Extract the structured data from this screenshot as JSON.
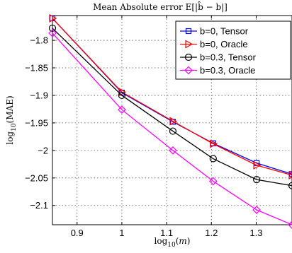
{
  "chart_data": {
    "type": "line",
    "title": "Mean Absolute error E[|b̂ − b|]",
    "xlabel": "log10(m)",
    "ylabel": "log10(MAE)",
    "x": [
      0.845,
      1.0,
      1.114,
      1.204,
      1.301,
      1.38
    ],
    "xlim": [
      0.845,
      1.38
    ],
    "ylim": [
      -2.135,
      -1.755
    ],
    "xticks": [
      0.9,
      1.0,
      1.1,
      1.2,
      1.3
    ],
    "xtick_labels": [
      "0.9",
      "1",
      "1.1",
      "1.2",
      "1.3"
    ],
    "yticks": [
      -1.8,
      -1.85,
      -1.9,
      -1.95,
      -2.0,
      -2.05,
      -2.1
    ],
    "ytick_labels": [
      "−1.8",
      "−1.85",
      "−1.9",
      "−1.95",
      "−2",
      "−2.05",
      "−2.1"
    ],
    "grid": true,
    "legend_position": "top-right",
    "series": [
      {
        "name": "b=0, Tensor",
        "color": "#0000ff",
        "marker": "square",
        "values": [
          -1.76,
          -1.895,
          -1.948,
          -1.987,
          -2.023,
          -2.043
        ]
      },
      {
        "name": "b=0, Oracle",
        "color": "#ff0000",
        "marker": "triangle-right",
        "values": [
          -1.76,
          -1.894,
          -1.947,
          -1.988,
          -2.027,
          -2.045
        ]
      },
      {
        "name": "b=0.3, Tensor",
        "color": "#000000",
        "marker": "circle",
        "values": [
          -1.778,
          -1.9,
          -1.965,
          -2.015,
          -2.053,
          -2.064
        ]
      },
      {
        "name": "b=0.3, Oracle",
        "color": "#ff00ff",
        "marker": "diamond",
        "values": [
          -1.787,
          -1.926,
          -2.0,
          -2.056,
          -2.108,
          -2.135
        ]
      }
    ]
  }
}
